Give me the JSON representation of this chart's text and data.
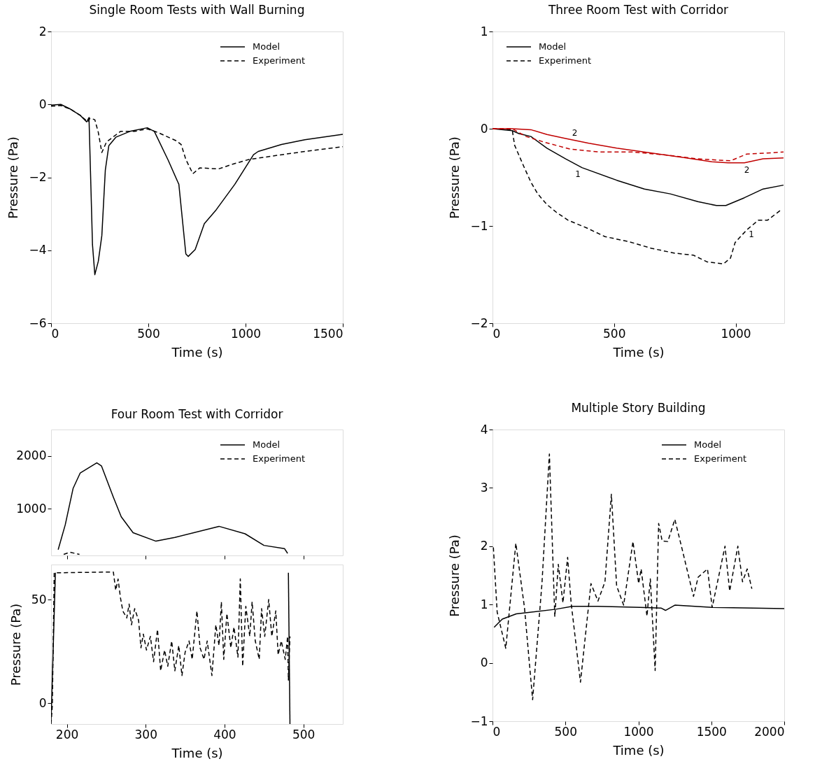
{
  "chart_data": [
    {
      "type": "line",
      "title": "Single Room Tests with Wall Burning",
      "xlabel": "Time (s)",
      "ylabel": "Pressure (Pa)",
      "xlim": [
        0,
        1500
      ],
      "xticks": [
        0,
        500,
        1000,
        1500
      ],
      "ylim": [
        -6,
        2
      ],
      "yticks": [
        -6,
        -4,
        -2,
        0,
        2
      ],
      "grid": false,
      "legend": "top right",
      "marker": "none",
      "series": [
        {
          "name": "Model",
          "color": "#000000",
          "line_style": "solid",
          "x": [
            0,
            50,
            100,
            150,
            183,
            195,
            213,
            225,
            243,
            261,
            279,
            297,
            333,
            405,
            495,
            531,
            603,
            651,
            657,
            693,
            705,
            741,
            788,
            849,
            945,
            1041,
            1065,
            1185,
            1305,
            1500
          ],
          "values": [
            -0.02,
            0,
            -0.13,
            -0.3,
            -0.48,
            -0.36,
            -3.85,
            -4.67,
            -4.3,
            -3.6,
            -1.8,
            -1.13,
            -0.9,
            -0.74,
            -0.64,
            -0.74,
            -1.54,
            -2.12,
            -2.19,
            -4.1,
            -4.17,
            -3.98,
            -3.27,
            -2.89,
            -2.19,
            -1.38,
            -1.29,
            -1.1,
            -0.97,
            -0.82
          ]
        },
        {
          "name": "Experiment",
          "color": "#000000",
          "line_style": "dashed",
          "x": [
            0,
            50,
            100,
            150,
            189,
            200,
            225,
            243,
            261,
            285,
            357,
            429,
            495,
            549,
            645,
            669,
            693,
            729,
            765,
            861,
            933,
            1017,
            1185,
            1305,
            1500
          ],
          "values": [
            -0.05,
            -0.03,
            -0.13,
            -0.3,
            -0.48,
            -0.38,
            -0.42,
            -0.77,
            -1.32,
            -1.03,
            -0.74,
            -0.74,
            -0.67,
            -0.77,
            -1.0,
            -1.1,
            -1.51,
            -1.9,
            -1.74,
            -1.77,
            -1.64,
            -1.51,
            -1.38,
            -1.29,
            -1.16
          ]
        }
      ]
    },
    {
      "type": "line",
      "title": "Three Room Test with Corridor",
      "xlabel": "Time (s)",
      "ylabel": "Pressure (Pa)",
      "xlim": [
        0,
        1200
      ],
      "xticks": [
        0,
        500,
        1000
      ],
      "ylim": [
        -2,
        1
      ],
      "yticks": [
        -2,
        -1,
        0,
        1
      ],
      "grid": false,
      "legend": "top left",
      "marker": "none",
      "annotations": [
        {
          "text": "2",
          "x": 338,
          "y": -0.12
        },
        {
          "text": "1",
          "x": 351,
          "y": -0.38
        },
        {
          "text": "2",
          "x": 1046,
          "y": -0.34
        },
        {
          "text": "1",
          "x": 1065,
          "y": -1.0
        }
      ],
      "series": [
        {
          "name": "Model",
          "color": "#000000",
          "line_style": "solid",
          "x": [
            0,
            81,
            109,
            158,
            224,
            301,
            368,
            511,
            625,
            731,
            845,
            921,
            960,
            1036,
            1113,
            1197
          ],
          "values": [
            0,
            -0.02,
            -0.05,
            -0.08,
            -0.2,
            -0.31,
            -0.4,
            -0.53,
            -0.62,
            -0.67,
            -0.75,
            -0.79,
            -0.79,
            -0.71,
            -0.62,
            -0.58
          ]
        },
        {
          "name": "Experiment",
          "color": "#000000",
          "line_style": "dashed",
          "x": [
            0,
            81,
            91,
            129,
            158,
            186,
            224,
            263,
            310,
            387,
            463,
            559,
            654,
            750,
            826,
            883,
            950,
            979,
            998,
            1046,
            1094,
            1132,
            1184
          ],
          "values": [
            0,
            -0.01,
            -0.17,
            -0.39,
            -0.55,
            -0.67,
            -0.78,
            -0.86,
            -0.94,
            -1.02,
            -1.11,
            -1.16,
            -1.23,
            -1.28,
            -1.3,
            -1.37,
            -1.39,
            -1.33,
            -1.17,
            -1.04,
            -0.94,
            -0.94,
            -0.84
          ]
        },
        {
          "color": "#c00000",
          "line_style": "solid",
          "x": [
            0,
            81,
            158,
            224,
            301,
            396,
            511,
            654,
            797,
            902,
            969,
            1036,
            1113,
            1197
          ],
          "values": [
            0,
            0,
            -0.01,
            -0.06,
            -0.1,
            -0.15,
            -0.2,
            -0.25,
            -0.3,
            -0.34,
            -0.35,
            -0.35,
            -0.31,
            -0.3
          ]
        },
        {
          "color": "#c00000",
          "line_style": "dashed",
          "x": [
            0,
            81,
            138,
            215,
            320,
            444,
            578,
            712,
            845,
            979,
            1046,
            1132,
            1197
          ],
          "values": [
            0,
            0,
            -0.08,
            -0.14,
            -0.21,
            -0.24,
            -0.24,
            -0.27,
            -0.31,
            -0.33,
            -0.26,
            -0.25,
            -0.24
          ]
        }
      ]
    },
    {
      "type": "line",
      "title": "Four Room Test with Corridor",
      "xlim": [
        180,
        550
      ],
      "xticks": [
        200,
        300,
        400,
        500
      ],
      "ylim": [
        120,
        2500
      ],
      "yticks": [
        1000,
        2000
      ],
      "grid": false,
      "legend": "top right",
      "marker": "none",
      "tick_labels": "y",
      "series": [
        {
          "name": "Model",
          "color": "#000000",
          "line_style": "solid",
          "x": [
            189,
            198,
            208,
            217,
            238,
            244,
            259,
            269,
            284,
            313,
            337,
            393,
            426,
            450,
            476,
            480
          ],
          "values": [
            230,
            700,
            1390,
            1680,
            1870,
            1810,
            1220,
            850,
            550,
            390,
            460,
            670,
            530,
            310,
            250,
            160
          ]
        },
        {
          "name": "Experiment",
          "color": "#000000",
          "line_style": "dashed",
          "x": [
            196,
            204,
            216
          ],
          "values": [
            140,
            180,
            140
          ]
        }
      ]
    },
    {
      "type": "line",
      "title": "Multiple Story Building",
      "xlabel": "Time (s)",
      "ylabel": "Pressure (Pa)",
      "xlim": [
        0,
        2000
      ],
      "xticks": [
        0,
        500,
        1000,
        1500,
        2000
      ],
      "ylim": [
        -1,
        4
      ],
      "yticks": [
        -1,
        0,
        1,
        2,
        3,
        4
      ],
      "grid": false,
      "legend": "top right",
      "marker": "none",
      "series": [
        {
          "name": "Model",
          "color": "#000000",
          "line_style": "solid",
          "x": [
            11,
            67,
            163,
            435,
            547,
            723,
            1011,
            1155,
            1186,
            1250,
            1506,
            2000
          ],
          "values": [
            0.61,
            0.75,
            0.84,
            0.92,
            0.97,
            0.97,
            0.95,
            0.94,
            0.9,
            0.99,
            0.95,
            0.93
          ]
        },
        {
          "name": "Experiment",
          "color": "#000000",
          "line_style": "dashed",
          "x": [
            6,
            32,
            91,
            160,
            219,
            275,
            339,
            390,
            427,
            451,
            483,
            515,
            539,
            603,
            675,
            723,
            771,
            815,
            851,
            899,
            963,
            1002,
            1019,
            1059,
            1082,
            1115,
            1139,
            1163,
            1202,
            1250,
            1299,
            1378,
            1410,
            1474,
            1506,
            1594,
            1626,
            1682,
            1714,
            1746,
            1778
          ],
          "values": [
            1.98,
            0.87,
            0.25,
            2.05,
            0.95,
            -0.63,
            1.36,
            3.58,
            0.79,
            1.69,
            1.03,
            1.81,
            1.03,
            -0.33,
            1.36,
            1.06,
            1.39,
            2.89,
            1.32,
            0.99,
            2.08,
            1.36,
            1.61,
            0.8,
            1.44,
            -0.13,
            2.39,
            2.09,
            2.08,
            2.46,
            1.96,
            1.14,
            1.47,
            1.61,
            0.95,
            2.0,
            1.23,
            2.0,
            1.39,
            1.61,
            1.27
          ]
        }
      ]
    },
    {
      "type": "line",
      "xlabel": "Time (s)",
      "ylabel": "Pressure (Pa)",
      "xlim": [
        180,
        550
      ],
      "xticks": [
        200,
        300,
        400,
        500
      ],
      "ylim": [
        -10,
        67
      ],
      "yticks": [
        0,
        50
      ],
      "grid": false,
      "marker": "none",
      "series": [
        {
          "color": "#000000",
          "line_style": "solid",
          "x": [
            180,
            185.5,
            300,
            481,
            483
          ],
          "values": [
            -8.7,
            63,
            null,
            63,
            -10
          ]
        },
        {
          "color": "#000000",
          "line_style": "dashed",
          "x": [
            180,
            181.6,
            184,
            259,
            262,
            265,
            268,
            271,
            276,
            279,
            282,
            286,
            291,
            294,
            297,
            301,
            306,
            310,
            315,
            319,
            324,
            328,
            333,
            337,
            342,
            346,
            350,
            355,
            359,
            365,
            369,
            374,
            378,
            384,
            389,
            393,
            396,
            399,
            403,
            408,
            412,
            417,
            420,
            423,
            427,
            432,
            435,
            439,
            444,
            447,
            451,
            456,
            460,
            465,
            468,
            472,
            477,
            480,
            481,
            483
          ],
          "values": [
            -10,
            -1,
            63,
            63.4,
            54.6,
            60,
            51,
            44.6,
            41.2,
            47.9,
            37.9,
            45.7,
            40.1,
            26.8,
            33.4,
            25.7,
            32.3,
            20.1,
            35.7,
            15.7,
            25.7,
            17.9,
            30.1,
            15.7,
            27.9,
            13.4,
            24.6,
            30.1,
            21.2,
            44.6,
            26.8,
            21.2,
            30.1,
            13.4,
            37.9,
            27.9,
            49,
            21.2,
            43.4,
            26.8,
            36.8,
            22.3,
            60.1,
            17.9,
            46.8,
            32.3,
            49,
            30.1,
            21.2,
            45.7,
            32.3,
            50.1,
            32.3,
            44.6,
            23.4,
            30.1,
            21.2,
            32.3,
            11.2,
            32.3
          ]
        }
      ]
    }
  ]
}
